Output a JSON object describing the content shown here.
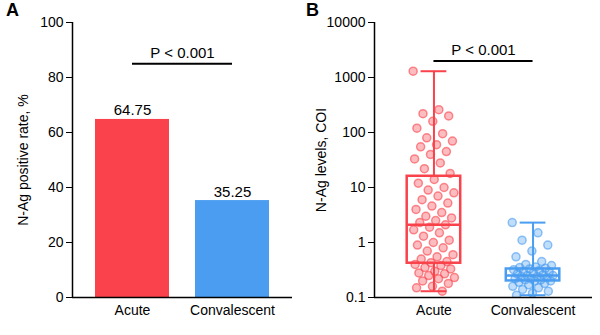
{
  "chart_data": [
    {
      "type": "bar",
      "title": "A",
      "categories": [
        "Acute",
        "Convalescent"
      ],
      "values": [
        64.75,
        35.25
      ],
      "colors": [
        "#f9424b",
        "#4a9df0"
      ],
      "ylabel": "N-Ag positive rate, %",
      "ylim": [
        0,
        100
      ],
      "yticks": [
        0,
        20,
        40,
        60,
        80,
        100
      ],
      "data_labels": true,
      "grid": false,
      "annotations": [
        "P < 0.001"
      ]
    },
    {
      "type": "box",
      "title": "B",
      "categories": [
        "Acute",
        "Convalescent"
      ],
      "colors": [
        "#f9424b",
        "#4a9df0"
      ],
      "ylabel": "N-Ag levels, COI",
      "log": "y",
      "ylim": [
        0.1,
        10000
      ],
      "yticks": [
        0.1,
        1,
        10,
        100,
        1000,
        10000
      ],
      "grid": false,
      "annotations": [
        "P < 0.001"
      ],
      "boxes": [
        {
          "min": 0.13,
          "q1": 0.42,
          "median": 2.1,
          "q3": 16,
          "max": 1300
        },
        {
          "min": 0.11,
          "q1": 0.2,
          "median": 0.25,
          "q3": 0.33,
          "max": 2.3
        }
      ],
      "points": [
        [
          1300,
          260,
          220,
          200,
          160,
          120,
          95,
          80,
          70,
          60,
          55,
          45,
          40,
          33,
          28,
          22,
          18,
          14,
          12,
          10,
          9,
          8,
          7,
          6,
          5.2,
          4.6,
          4,
          3.5,
          3,
          2.8,
          2.5,
          2.3,
          2.1,
          1.9,
          1.7,
          1.5,
          1.3,
          1.1,
          1.0,
          0.9,
          0.8,
          0.7,
          0.6,
          0.55,
          0.5,
          0.45,
          0.43,
          0.4,
          0.38,
          0.35,
          0.33,
          0.3,
          0.28,
          0.27,
          0.25,
          0.23,
          0.22,
          0.2,
          0.18,
          0.16,
          0.15,
          0.13
        ],
        [
          2.3,
          1.5,
          1.1,
          0.9,
          0.7,
          0.55,
          0.45,
          0.4,
          0.38,
          0.36,
          0.35,
          0.34,
          0.33,
          0.32,
          0.31,
          0.3,
          0.29,
          0.28,
          0.27,
          0.26,
          0.25,
          0.25,
          0.24,
          0.24,
          0.23,
          0.22,
          0.22,
          0.21,
          0.21,
          0.2,
          0.2,
          0.19,
          0.18,
          0.17,
          0.16,
          0.15,
          0.14,
          0.13,
          0.12,
          0.11
        ]
      ]
    }
  ]
}
